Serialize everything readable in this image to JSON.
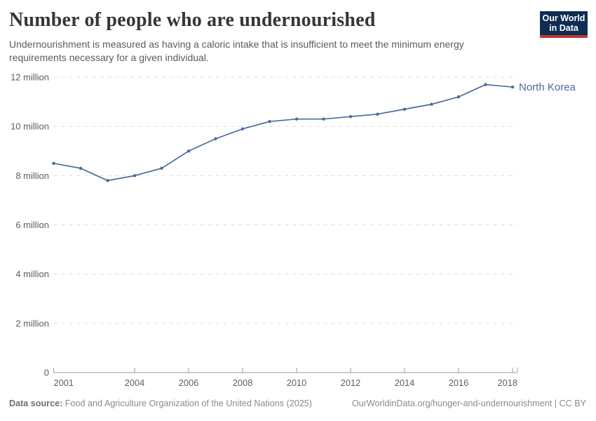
{
  "header": {
    "title": "Number of people who are undernourished",
    "subtitle": "Undernourishment is measured as having a caloric intake that is insufficient to meet the minimum energy requirements necessary for a given individual.",
    "logo": {
      "line1": "Our World",
      "line2": "in Data",
      "bg_color": "#0f2d52",
      "accent_color": "#c0362c"
    }
  },
  "chart_data": {
    "type": "line",
    "title": "Number of people who are undernourished",
    "unit": "people (values in millions)",
    "x": [
      2001,
      2002,
      2003,
      2004,
      2005,
      2006,
      2007,
      2008,
      2009,
      2010,
      2011,
      2012,
      2013,
      2014,
      2015,
      2016,
      2017,
      2018
    ],
    "series": [
      {
        "name": "North Korea",
        "color": "#4c6a9c",
        "values": [
          8.5,
          8.3,
          7.8,
          8.0,
          8.3,
          9.0,
          9.5,
          9.9,
          10.2,
          10.3,
          10.3,
          10.4,
          10.5,
          10.7,
          10.9,
          11.2,
          11.7,
          11.6
        ]
      }
    ],
    "x_ticks": [
      2001,
      2004,
      2006,
      2008,
      2010,
      2012,
      2014,
      2016,
      2018
    ],
    "y_ticks": [
      {
        "value": 0,
        "label": "0"
      },
      {
        "value": 2,
        "label": "2 million"
      },
      {
        "value": 4,
        "label": "4 million"
      },
      {
        "value": 6,
        "label": "6 million"
      },
      {
        "value": 8,
        "label": "8 million"
      },
      {
        "value": 10,
        "label": "10 million"
      },
      {
        "value": 12,
        "label": "12 million"
      }
    ],
    "ylim": [
      0,
      12
    ],
    "xlim": [
      2001,
      2018
    ],
    "grid": "horizontal-dashed",
    "legend": "end-of-line-label",
    "colors": {
      "grid": "#dcdcdc",
      "axis": "#9e9e9e",
      "tick_label": "#5e5e5e"
    }
  },
  "footer": {
    "data_source_label": "Data source:",
    "data_source_value": " Food and Agriculture Organization of the United Nations (2025)",
    "url_label": "OurWorldinData.org/hunger-and-undernourishment",
    "separator": " | ",
    "license_label": "CC BY"
  }
}
